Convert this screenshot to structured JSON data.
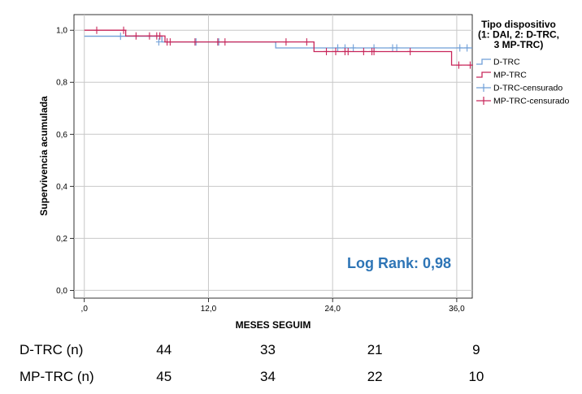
{
  "chart_data": {
    "type": "line",
    "subtype": "kaplan-meier",
    "xlabel": "MESES SEGUIM",
    "ylabel": "Supervivencia acumulada",
    "xlim": [
      -1,
      37.5
    ],
    "ylim": [
      -0.03,
      1.06
    ],
    "xticks": [
      0,
      12,
      24,
      36
    ],
    "xtick_labels": [
      ",0",
      "12,0",
      "24,0",
      "36,0"
    ],
    "yticks": [
      0,
      0.2,
      0.4,
      0.6,
      0.8,
      1.0
    ],
    "ytick_labels": [
      "0,0",
      "0,2",
      "0,4",
      "0,6",
      "0,8",
      "1,0"
    ],
    "grid": true,
    "legend": {
      "title_lines": [
        "Tipo dispositivo",
        "(1: DAI, 2: D-TRC,",
        "3 MP-TRC)"
      ],
      "position": "top-right-outside",
      "entries": [
        "D-TRC",
        "MP-TRC",
        "D-TRC-censurado",
        "MP-TRC-censurado"
      ]
    },
    "series": [
      {
        "name": "D-TRC",
        "color": "#6f9fd8",
        "steps": [
          [
            0,
            0.977
          ],
          [
            7.5,
            0.955
          ],
          [
            18.5,
            0.932
          ],
          [
            37.5,
            0.932
          ]
        ],
        "censored": [
          [
            3.5,
            0.977
          ],
          [
            7.2,
            0.955
          ],
          [
            10.8,
            0.955
          ],
          [
            13,
            0.955
          ],
          [
            24.5,
            0.932
          ],
          [
            25.2,
            0.932
          ],
          [
            26,
            0.932
          ],
          [
            28,
            0.932
          ],
          [
            29.8,
            0.932
          ],
          [
            30.2,
            0.932
          ],
          [
            36.3,
            0.932
          ],
          [
            37,
            0.932
          ]
        ]
      },
      {
        "name": "MP-TRC",
        "color": "#c8265a",
        "steps": [
          [
            0,
            1.0
          ],
          [
            4,
            0.978
          ],
          [
            7.8,
            0.955
          ],
          [
            22.2,
            0.918
          ],
          [
            35.5,
            0.866
          ],
          [
            37.5,
            0.866
          ]
        ],
        "censored": [
          [
            1.2,
            1.0
          ],
          [
            3.8,
            1.0
          ],
          [
            5,
            0.978
          ],
          [
            6.3,
            0.978
          ],
          [
            7.0,
            0.978
          ],
          [
            7.3,
            0.978
          ],
          [
            8.0,
            0.955
          ],
          [
            8.3,
            0.955
          ],
          [
            10.7,
            0.955
          ],
          [
            12.9,
            0.955
          ],
          [
            13.6,
            0.955
          ],
          [
            19.5,
            0.955
          ],
          [
            21.5,
            0.955
          ],
          [
            23.4,
            0.918
          ],
          [
            24.3,
            0.918
          ],
          [
            25.2,
            0.918
          ],
          [
            25.5,
            0.918
          ],
          [
            27.0,
            0.918
          ],
          [
            27.8,
            0.918
          ],
          [
            28.0,
            0.918
          ],
          [
            31.5,
            0.918
          ],
          [
            36.2,
            0.866
          ],
          [
            37.3,
            0.866
          ]
        ]
      }
    ],
    "annotation": "Log Rank: 0,98",
    "risk_table": {
      "times": [
        0,
        12,
        24,
        36
      ],
      "rows": [
        {
          "label": "D-TRC (n)",
          "values": [
            "44",
            "33",
            "21",
            "9"
          ]
        },
        {
          "label": "MP-TRC (n)",
          "values": [
            "45",
            "34",
            "22",
            "10"
          ]
        }
      ]
    }
  }
}
